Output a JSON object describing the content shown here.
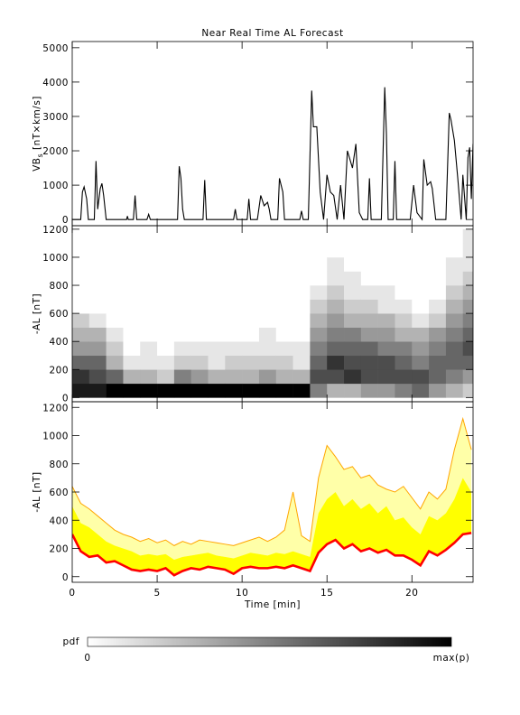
{
  "chart_data": [
    {
      "type": "line",
      "title": "Near Real Time AL Forecast",
      "y_label": {
        "main": "VB",
        "sub": "s",
        "unit": " [nT×km/s]"
      },
      "xlim": [
        0,
        23.6
      ],
      "xticks": [
        0,
        5,
        10,
        15,
        20
      ],
      "ylim": [
        -180,
        5180
      ],
      "yticks": [
        0,
        1000,
        2000,
        3000,
        4000,
        5000
      ],
      "x": [
        0,
        0.5,
        0.6,
        0.7,
        0.85,
        0.95,
        1.3,
        1.4,
        1.5,
        1.65,
        1.75,
        1.85,
        2.0,
        3.2,
        3.25,
        3.3,
        3.6,
        3.7,
        3.8,
        4.4,
        4.5,
        4.6,
        6.2,
        6.3,
        6.4,
        6.5,
        6.6,
        7.7,
        7.8,
        7.9,
        9.5,
        9.6,
        9.7,
        10.3,
        10.4,
        10.5,
        10.9,
        11.1,
        11.3,
        11.5,
        11.6,
        11.7,
        12.1,
        12.2,
        12.4,
        12.5,
        13.4,
        13.5,
        13.6,
        13.9,
        14.1,
        14.2,
        14.4,
        14.6,
        14.8,
        15.0,
        15.2,
        15.4,
        15.6,
        15.8,
        16.0,
        16.2,
        16.5,
        16.7,
        16.9,
        17.1,
        17.4,
        17.5,
        17.6,
        18.2,
        18.4,
        18.5,
        18.6,
        18.9,
        19.0,
        19.1,
        19.3,
        19.9,
        20.1,
        20.3,
        20.6,
        20.7,
        20.9,
        21.1,
        21.2,
        21.4,
        21.6,
        22.0,
        22.2,
        22.3,
        22.5,
        22.7,
        22.9,
        23.0,
        23.2,
        23.3,
        23.4,
        23.5,
        23.6
      ],
      "series": [
        {
          "color": "#000000",
          "values": [
            0,
            0,
            800,
            950,
            600,
            0,
            0,
            1700,
            300,
            900,
            1050,
            700,
            0,
            0,
            100,
            0,
            0,
            700,
            0,
            0,
            150,
            0,
            0,
            1550,
            1200,
            300,
            0,
            0,
            1150,
            0,
            0,
            300,
            0,
            0,
            600,
            0,
            0,
            700,
            400,
            500,
            300,
            0,
            0,
            1200,
            800,
            0,
            0,
            250,
            0,
            0,
            3750,
            2700,
            2700,
            800,
            0,
            1300,
            800,
            700,
            0,
            1000,
            0,
            2000,
            1500,
            2200,
            200,
            0,
            0,
            1200,
            0,
            0,
            3850,
            2500,
            0,
            0,
            1700,
            0,
            0,
            0,
            1000,
            200,
            0,
            1750,
            1000,
            1100,
            900,
            0,
            0,
            0,
            3100,
            2900,
            2300,
            1200,
            0,
            1300,
            0,
            1800,
            2100,
            600,
            2200
          ]
        }
      ]
    },
    {
      "type": "heatmap",
      "y_label": "-AL [nT]",
      "xlim": [
        0,
        23.6
      ],
      "xticks": [
        0,
        5,
        10,
        15,
        20
      ],
      "ylim": [
        -30,
        1225
      ],
      "yticks": [
        0,
        200,
        400,
        600,
        800,
        1000,
        1200
      ],
      "x_bins": [
        0,
        1,
        2,
        3,
        4,
        5,
        6,
        7,
        8,
        9,
        10,
        11,
        12,
        13,
        14,
        15,
        16,
        17,
        18,
        19,
        20,
        21,
        22,
        23,
        24
      ],
      "y_bins": [
        0,
        100,
        200,
        300,
        400,
        500,
        600,
        700,
        800,
        900,
        1000,
        1100,
        1200
      ],
      "colormap": [
        "#ffffff",
        "#000000"
      ],
      "z": [
        [
          0.9,
          0.8,
          0.6,
          0.4,
          0.3,
          0.2,
          0,
          0,
          0,
          0,
          0,
          0
        ],
        [
          0.9,
          0.7,
          0.6,
          0.4,
          0.3,
          0.1,
          0,
          0,
          0,
          0,
          0,
          0
        ],
        [
          1,
          0.6,
          0.3,
          0.2,
          0.1,
          0,
          0,
          0,
          0,
          0,
          0,
          0
        ],
        [
          1,
          0.3,
          0.1,
          0,
          0,
          0,
          0,
          0,
          0,
          0,
          0,
          0
        ],
        [
          1,
          0.3,
          0.1,
          0.1,
          0,
          0,
          0,
          0,
          0,
          0,
          0,
          0
        ],
        [
          1,
          0.2,
          0.1,
          0,
          0,
          0,
          0,
          0,
          0,
          0,
          0,
          0
        ],
        [
          1,
          0.5,
          0.2,
          0.1,
          0,
          0,
          0,
          0,
          0,
          0,
          0,
          0
        ],
        [
          1,
          0.4,
          0.2,
          0.1,
          0,
          0,
          0,
          0,
          0,
          0,
          0,
          0
        ],
        [
          1,
          0.3,
          0.1,
          0.1,
          0,
          0,
          0,
          0,
          0,
          0,
          0,
          0
        ],
        [
          1,
          0.3,
          0.2,
          0.1,
          0,
          0,
          0,
          0,
          0,
          0,
          0,
          0
        ],
        [
          1,
          0.3,
          0.2,
          0.1,
          0,
          0,
          0,
          0,
          0,
          0,
          0,
          0
        ],
        [
          1,
          0.4,
          0.2,
          0.1,
          0.1,
          0,
          0,
          0,
          0,
          0,
          0,
          0
        ],
        [
          1,
          0.3,
          0.2,
          0.1,
          0,
          0,
          0,
          0,
          0,
          0,
          0,
          0
        ],
        [
          1,
          0.3,
          0.1,
          0.1,
          0,
          0,
          0,
          0,
          0,
          0,
          0,
          0
        ],
        [
          0.5,
          0.7,
          0.6,
          0.5,
          0.4,
          0.3,
          0.2,
          0.1,
          0,
          0,
          0,
          0
        ],
        [
          0.3,
          0.7,
          0.8,
          0.6,
          0.5,
          0.4,
          0.3,
          0.2,
          0.1,
          0.1,
          0,
          0
        ],
        [
          0.3,
          0.8,
          0.7,
          0.6,
          0.5,
          0.3,
          0.2,
          0.1,
          0.1,
          0,
          0,
          0
        ],
        [
          0.4,
          0.7,
          0.7,
          0.6,
          0.4,
          0.3,
          0.2,
          0.1,
          0,
          0,
          0,
          0
        ],
        [
          0.4,
          0.7,
          0.7,
          0.5,
          0.4,
          0.3,
          0.1,
          0.1,
          0,
          0,
          0,
          0
        ],
        [
          0.5,
          0.7,
          0.6,
          0.5,
          0.3,
          0.2,
          0.1,
          0,
          0,
          0,
          0,
          0
        ],
        [
          0.6,
          0.7,
          0.5,
          0.4,
          0.3,
          0.1,
          0,
          0,
          0,
          0,
          0,
          0
        ],
        [
          0.4,
          0.6,
          0.6,
          0.5,
          0.4,
          0.2,
          0.1,
          0,
          0,
          0,
          0,
          0
        ],
        [
          0.3,
          0.5,
          0.6,
          0.6,
          0.5,
          0.4,
          0.3,
          0.2,
          0.1,
          0.1,
          0,
          0
        ],
        [
          0.2,
          0.4,
          0.6,
          0.7,
          0.6,
          0.5,
          0.4,
          0.3,
          0.2,
          0.1,
          0.1,
          0.1
        ]
      ],
      "colorbar": {
        "label": "pdf",
        "min_label": "0",
        "max_label": "max(p)"
      }
    },
    {
      "type": "band",
      "y_label": "-AL [nT]",
      "x_label": "Time [min]",
      "xlim": [
        0,
        23.6
      ],
      "xticks": [
        0,
        5,
        10,
        15,
        20
      ],
      "ylim": [
        -40,
        1240
      ],
      "yticks": [
        0,
        200,
        400,
        600,
        800,
        1000,
        1200
      ],
      "x": [
        0,
        0.5,
        1,
        1.5,
        2,
        2.5,
        3,
        3.5,
        4,
        4.5,
        5,
        5.5,
        6,
        6.5,
        7,
        7.5,
        8,
        8.5,
        9,
        9.5,
        10,
        10.5,
        11,
        11.5,
        12,
        12.5,
        13,
        13.5,
        14,
        14.5,
        15,
        15.5,
        16,
        16.5,
        17,
        17.5,
        18,
        18.5,
        19,
        19.5,
        20,
        20.5,
        21,
        21.5,
        22,
        22.5,
        23,
        23.5
      ],
      "series": [
        {
          "color": "#ff0000",
          "values": [
            300,
            180,
            140,
            150,
            100,
            110,
            80,
            50,
            40,
            50,
            40,
            60,
            10,
            40,
            60,
            50,
            70,
            60,
            50,
            20,
            60,
            70,
            60,
            60,
            70,
            60,
            80,
            60,
            40,
            170,
            230,
            260,
            200,
            230,
            180,
            200,
            170,
            190,
            150,
            150,
            120,
            80,
            180,
            150,
            190,
            240,
            300,
            310
          ]
        },
        {
          "color": "#ffff00",
          "values": [
            500,
            380,
            350,
            300,
            250,
            220,
            200,
            180,
            150,
            160,
            150,
            160,
            120,
            140,
            150,
            160,
            170,
            150,
            140,
            130,
            150,
            170,
            160,
            150,
            170,
            160,
            180,
            160,
            140,
            450,
            550,
            600,
            500,
            550,
            480,
            520,
            450,
            500,
            400,
            420,
            350,
            300,
            430,
            400,
            450,
            550,
            700,
            600
          ]
        },
        {
          "color": "#ffa500",
          "values": [
            640,
            520,
            480,
            430,
            380,
            330,
            300,
            280,
            250,
            270,
            240,
            260,
            220,
            250,
            230,
            260,
            250,
            240,
            230,
            220,
            240,
            260,
            280,
            250,
            280,
            330,
            600,
            290,
            250,
            700,
            930,
            850,
            760,
            780,
            700,
            720,
            650,
            620,
            600,
            640,
            560,
            480,
            600,
            550,
            620,
            900,
            1120,
            900
          ]
        }
      ]
    }
  ]
}
